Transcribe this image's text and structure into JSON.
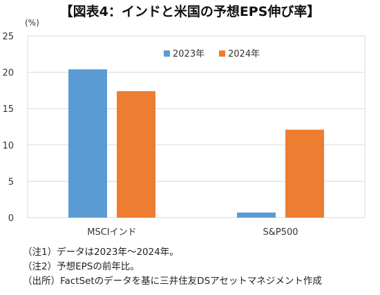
{
  "chart_data": {
    "type": "bar",
    "title": "【図表4：インドと米国の予想EPS伸び率】",
    "unit": "(%)",
    "categories": [
      "MSCIインド",
      "S&P500"
    ],
    "series": [
      {
        "name": "2023年",
        "color": "#5b9bd5",
        "values": [
          20.4,
          0.7
        ]
      },
      {
        "name": "2024年",
        "color": "#ed7d31",
        "values": [
          17.4,
          12.1
        ]
      }
    ],
    "ylim": [
      0,
      25
    ],
    "yticks": [
      0,
      5,
      10,
      15,
      20,
      25
    ],
    "grid": true,
    "legend": "top-center"
  },
  "notes": [
    "（注1）データは2023年～2024年。",
    "（注2）予想EPSの前年比。",
    "（出所）FactSetのデータを基に三井住友DSアセットマネジメント作成"
  ]
}
